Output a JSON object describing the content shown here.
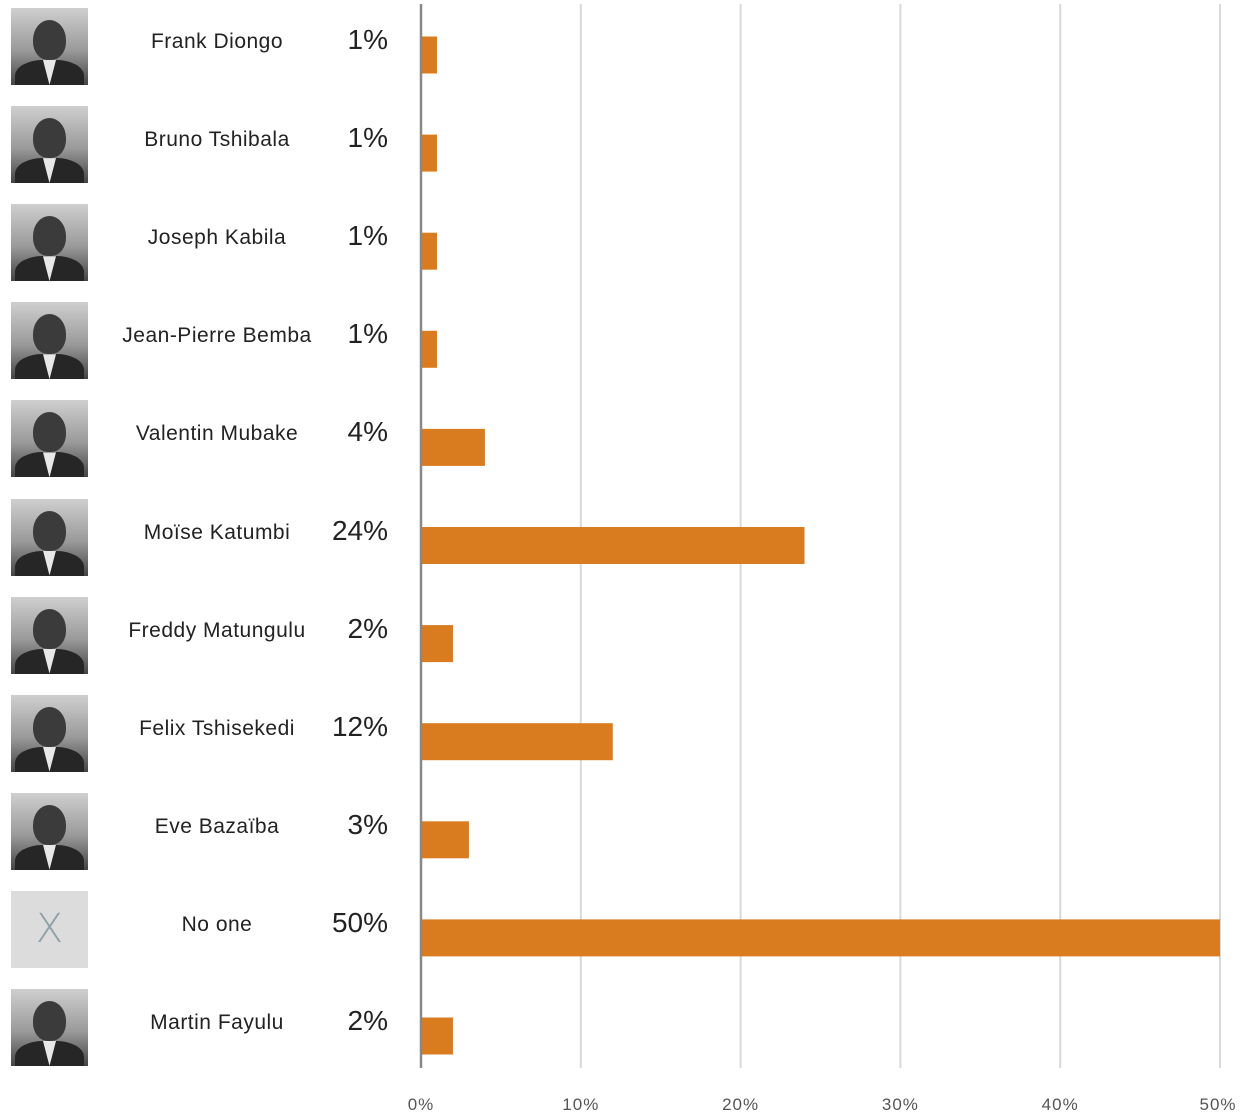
{
  "chart_data": {
    "type": "bar",
    "orientation": "horizontal",
    "categories": [
      "Frank Diongo",
      "Bruno Tshibala",
      "Joseph Kabila",
      "Jean-Pierre Bemba",
      "Valentin Mubake",
      "Moïse Katumbi",
      "Freddy Matungulu",
      "Felix Tshisekedi",
      "Eve Bazaïba",
      "No one",
      "Martin Fayulu"
    ],
    "values": [
      1,
      1,
      1,
      1,
      4,
      24,
      2,
      12,
      3,
      50,
      2
    ],
    "value_labels": [
      "1%",
      "1%",
      "1%",
      "1%",
      "4%",
      "24%",
      "2%",
      "12%",
      "3%",
      "50%",
      "2%"
    ],
    "avatars": [
      "photo",
      "photo",
      "photo",
      "photo",
      "photo",
      "photo",
      "photo",
      "photo",
      "photo",
      "x-icon",
      "photo"
    ],
    "none_symbol": "X",
    "xlim": [
      0,
      50
    ],
    "xticks": [
      "0%",
      "10%",
      "20%",
      "30%",
      "40%",
      "50%"
    ],
    "grid": true,
    "colors": {
      "bar": "#d87c1f",
      "grid": "#d9d9d9",
      "axis": "#888888",
      "tick_text": "#555555"
    }
  }
}
